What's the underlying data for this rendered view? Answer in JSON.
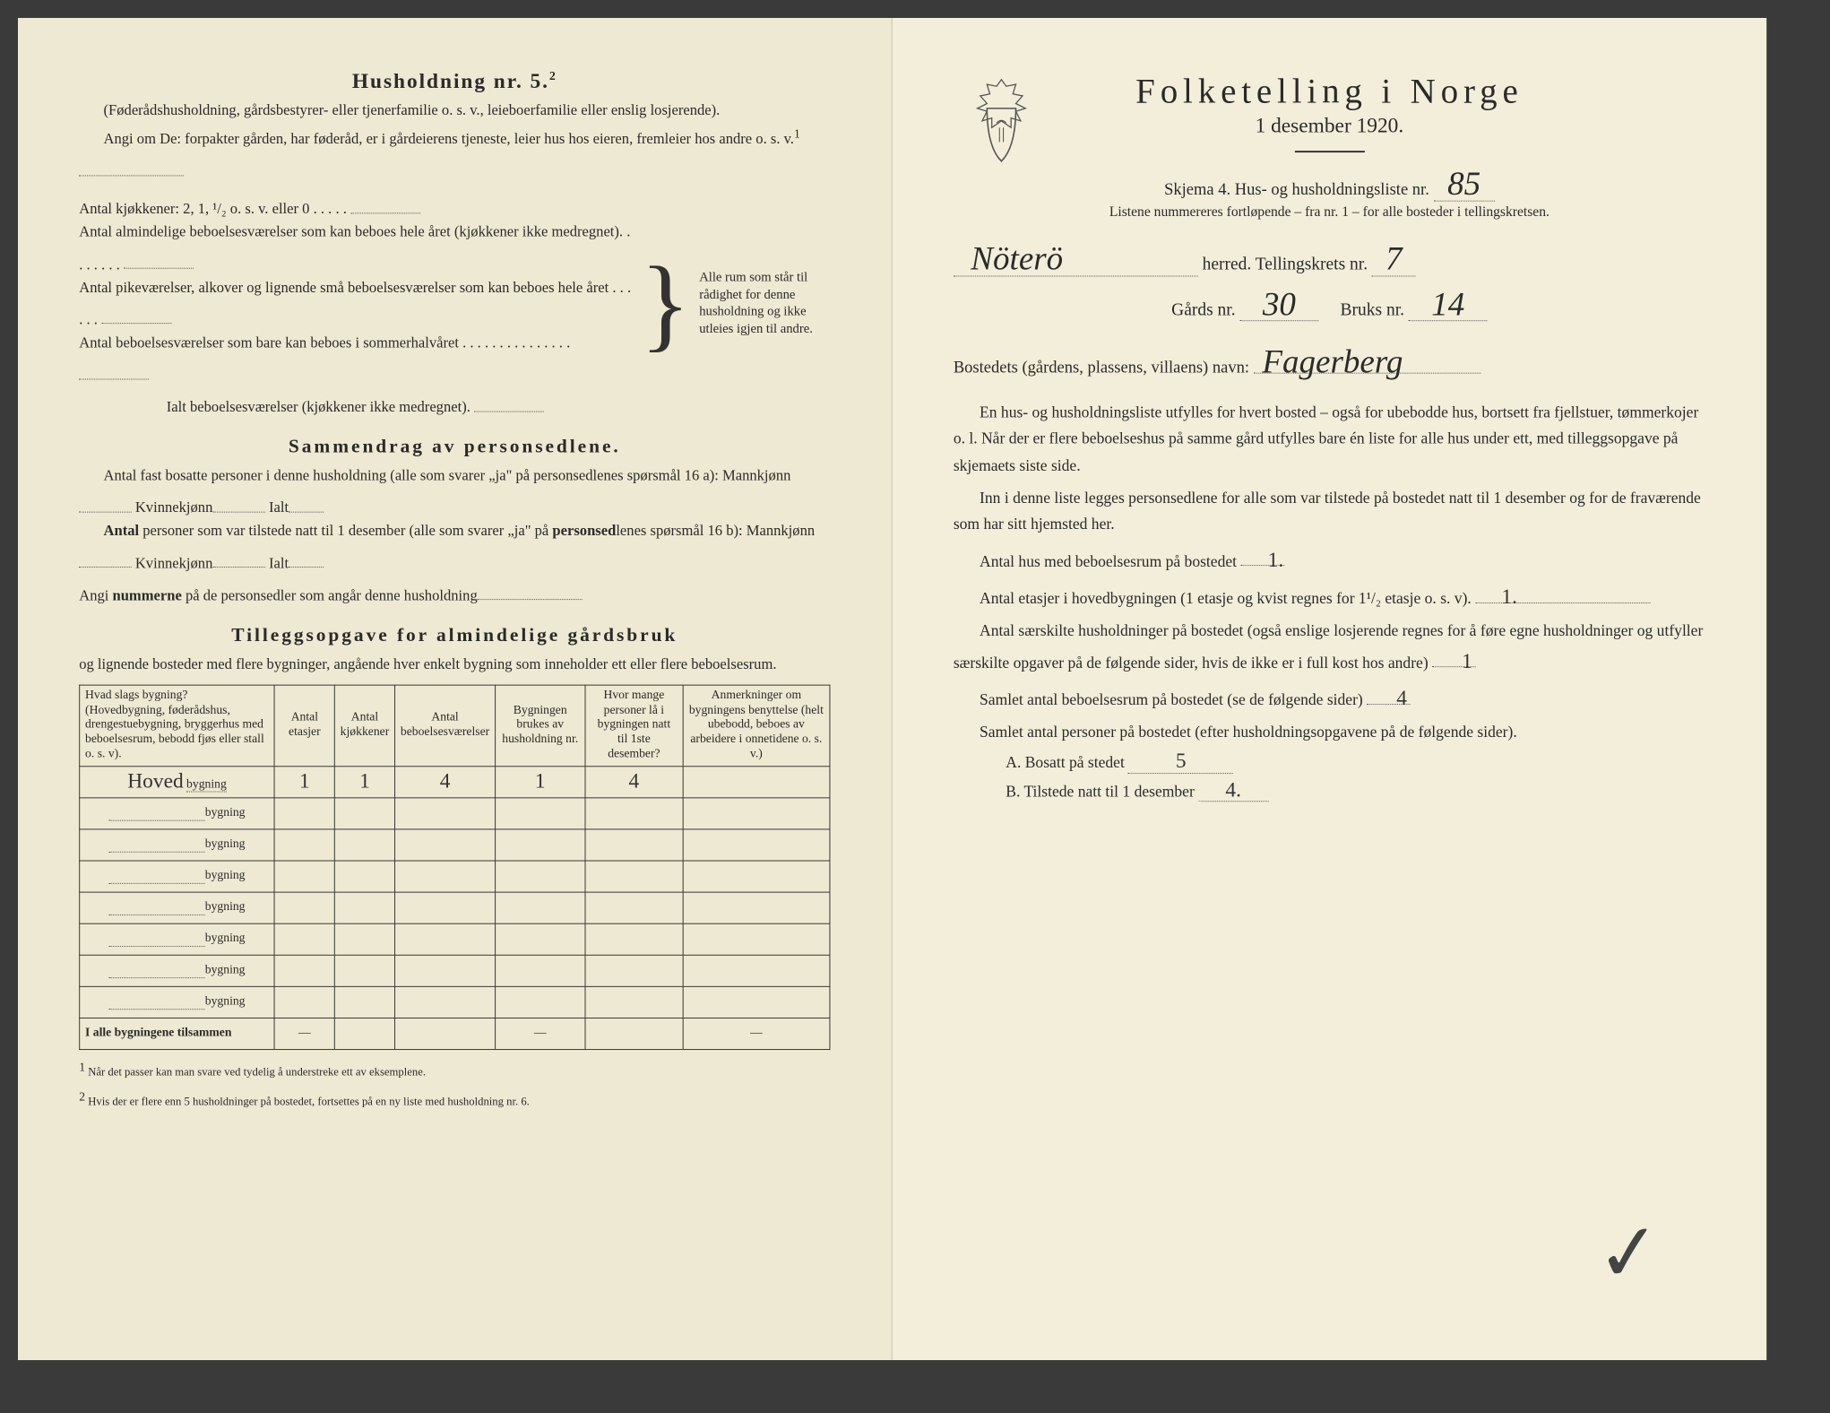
{
  "left": {
    "heading": "Husholdning nr. 5.",
    "heading_sup": "2",
    "sub1": "(Føderådshusholdning, gårdsbestyrer- eller tjenerfamilie o. s. v., leieboerfamilie eller enslig losjerende).",
    "sub2": "Angi om De: forpakter gården, har føderåd, er i gårdeierens tjeneste, leier hus hos eieren, fremleier hos andre o. s. v.",
    "k_line": "Antal kjøkkener: 2, 1, ¹/₂ o. s. v. eller 0",
    "alm1": "Antal almindelige beboelsesværelser som kan beboes hele året (kjøkkener ikke medregnet).",
    "alm2": "Antal pikeværelser, alkover og lignende små beboelsesværelser som kan beboes hele året",
    "alm3": "Antal beboelsesværelser som bare kan beboes i sommerhalvåret",
    "ialt": "Ialt beboelsesværelser (kjøkkener ikke medregnet).",
    "brace_note": "Alle rum som står til rådighet for denne husholdning og ikke utleies igjen til andre.",
    "sammen_h": "Sammendrag av personsedlene.",
    "sammen_p1a": "Antal fast bosatte personer i denne husholdning (alle som svarer „ja\" på personsedlenes spørsmål 16 a): Mannkjønn",
    "sammen_p1b": "Kvinnekjønn",
    "sammen_p1c": "Ialt",
    "sammen_p2a": "Antal personer som var tilstede natt til 1 desember (alle som svarer „ja\" på personsedlenes spørsmål 16 b): Mannkjønn",
    "sammen_p2b": "Kvinnekjønn",
    "sammen_p2c": "Ialt",
    "sammen_p3": "Angi nummerne på de personsedler som angår denne husholdning",
    "tilleg_h": "Tilleggsopgave for almindelige gårdsbruk",
    "tilleg_sub": "og lignende bosteder med flere bygninger, angående hver enkelt bygning som inneholder ett eller flere beboelsesrum.",
    "table": {
      "headers": [
        "Hvad slags bygning?\n(Hovedbygning, føderådshus, drengestuebygning, bryggerhus med beboelsesrum, bebodd fjøs eller stall o. s. v).",
        "Antal etasjer",
        "Antal kjøkkener",
        "Antal beboelsesværelser",
        "Bygningen brukes av husholdning nr.",
        "Hvor mange personer lå i bygningen natt til 1ste desember?",
        "Anmerkninger om bygningens benyttelse (helt ubebodd, beboes av arbeidere i onnetidene o. s. v.)"
      ],
      "row1_label": "Hoved",
      "bygning_suffix": "bygning",
      "row1": [
        "1",
        "1",
        "4",
        "1",
        "4",
        ""
      ],
      "sum_label": "I alle bygningene tilsammen",
      "sum": [
        "—",
        "",
        "",
        "—",
        "",
        "—"
      ]
    },
    "foot1": "Når det passer kan man svare ved tydelig å understreke ett av eksemplene.",
    "foot2": "Hvis der er flere enn 5 husholdninger på bostedet, fortsettes på en ny liste med husholdning nr. 6."
  },
  "right": {
    "title": "Folketelling i Norge",
    "subtitle": "1 desember 1920.",
    "skjema": "Skjema 4.  Hus- og husholdningsliste nr.",
    "liste_nr": "85",
    "listene": "Listene nummereres fortløpende – fra nr. 1 – for alle bosteder i tellingskretsen.",
    "herred_val": "Nöterö",
    "herred_lbl": "herred.   Tellingskrets nr.",
    "krets_val": "7",
    "gards_lbl": "Gårds nr.",
    "gards_val": "30",
    "bruks_lbl": "Bruks nr.",
    "bruks_val": "14",
    "bosted_lbl": "Bostedets (gårdens, plassens, villaens) navn:",
    "bosted_val": "Fagerberg",
    "p1": "En hus- og husholdningsliste utfylles for hvert bosted – også for ubebodde hus, bortsett fra fjellstuer, tømmerkojer o. l.  Når der er flere beboelseshus på samme gård utfylles bare én liste for alle hus under ett, med tilleggsopgave på skjemaets siste side.",
    "p2": "Inn i denne liste legges personsedlene for alle som var tilstede på bostedet natt til 1 desember og for de fraværende som har sitt hjemsted her.",
    "q1": "Antal hus med beboelsesrum på bostedet",
    "q1_val": "1.",
    "q2": "Antal etasjer i hovedbygningen (1 etasje og kvist regnes for 1¹/₂ etasje o. s. v).",
    "q2_val": "1.",
    "q3": "Antal særskilte husholdninger på bostedet (også enslige losjerende regnes for å føre egne husholdninger og utfyller særskilte opgaver på de følgende sider, hvis de ikke er i full kost hos andre)",
    "q3_val": "1",
    "q4": "Samlet antal beboelsesrum på bostedet (se de følgende sider)",
    "q4_val": "4",
    "q5": "Samlet antal personer på bostedet (efter husholdningsopgavene på de følgende sider).",
    "qa_lbl": "A.  Bosatt på stedet",
    "qa_val": "5",
    "qb_lbl": "B.  Tilstede natt til 1 desember",
    "qb_val": "4."
  }
}
